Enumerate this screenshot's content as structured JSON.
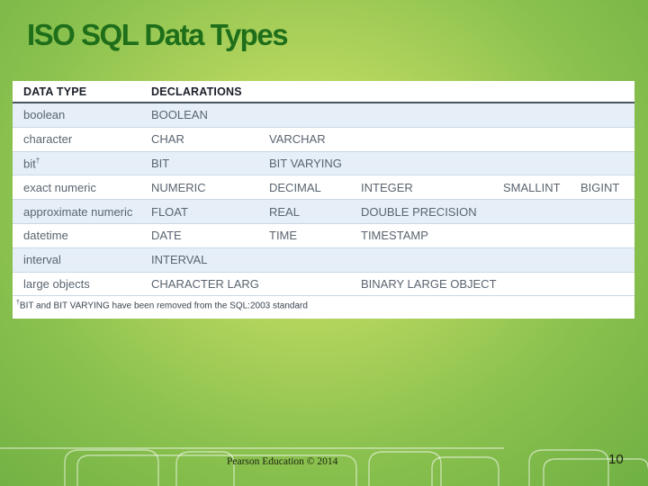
{
  "slide": {
    "title": "ISO SQL Data Types",
    "footer": "Pearson Education © 2014",
    "page_number": "10"
  },
  "table": {
    "headers": [
      "DATA TYPE",
      "DECLARATIONS"
    ],
    "rows": [
      {
        "type": "boolean",
        "sup": "",
        "c2": "BOOLEAN",
        "c3": "",
        "c4": "",
        "c5": "",
        "c6": ""
      },
      {
        "type": "character",
        "sup": "",
        "c2": "CHAR",
        "c3": "VARCHAR",
        "c4": "",
        "c5": "",
        "c6": ""
      },
      {
        "type": "bit",
        "sup": "†",
        "c2": "BIT",
        "c3": "BIT VARYING",
        "c4": "",
        "c5": "",
        "c6": ""
      },
      {
        "type": "exact numeric",
        "sup": "",
        "c2": "NUMERIC",
        "c3": "DECIMAL",
        "c4": "INTEGER",
        "c5": "SMALLINT",
        "c6": "BIGINT"
      },
      {
        "type": "approximate numeric",
        "sup": "",
        "c2": "FLOAT",
        "c3": "REAL",
        "c4": "DOUBLE PRECISION",
        "c5": "",
        "c6": ""
      },
      {
        "type": "datetime",
        "sup": "",
        "c2": "DATE",
        "c3": "TIME",
        "c4": "TIMESTAMP",
        "c5": "",
        "c6": ""
      },
      {
        "type": "interval",
        "sup": "",
        "c2": "INTERVAL",
        "c3": "",
        "c4": "",
        "c5": "",
        "c6": ""
      },
      {
        "type": "large objects",
        "sup": "",
        "c2": "CHARACTER LARGE OBJECT",
        "c3": "",
        "c4": "BINARY LARGE OBJECT",
        "c5": "",
        "c6": ""
      }
    ],
    "footnote_mark": "†",
    "footnote": "BIT and BIT VARYING have been removed from the SQL:2003 standard"
  }
}
